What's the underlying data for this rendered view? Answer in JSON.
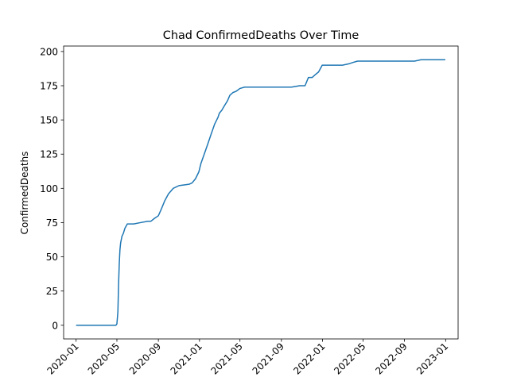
{
  "chart_data": {
    "type": "line",
    "title": "Chad  ConfirmedDeaths Over Time",
    "xlabel": "",
    "ylabel": "ConfirmedDeaths",
    "xlim": [
      "2019-11-25",
      "2023-02-07"
    ],
    "ylim": [
      -10,
      204
    ],
    "grid": false,
    "line_color": "#1f77b4",
    "x_ticks": [
      "2020-01",
      "2020-05",
      "2020-09",
      "2021-01",
      "2021-05",
      "2021-09",
      "2022-01",
      "2022-05",
      "2022-09",
      "2023-01"
    ],
    "y_ticks": [
      0,
      25,
      50,
      75,
      100,
      125,
      150,
      175,
      200
    ],
    "series": [
      {
        "x": [
          "2020-01-01",
          "2020-04-28",
          "2020-05-01",
          "2020-05-04",
          "2020-05-06",
          "2020-05-08",
          "2020-05-10",
          "2020-05-12",
          "2020-05-16",
          "2020-05-20",
          "2020-05-25",
          "2020-06-01",
          "2020-06-10",
          "2020-06-20",
          "2020-07-10",
          "2020-08-01",
          "2020-08-10",
          "2020-08-20",
          "2020-09-01",
          "2020-09-10",
          "2020-09-20",
          "2020-10-01",
          "2020-10-15",
          "2020-11-01",
          "2020-12-01",
          "2020-12-10",
          "2020-12-20",
          "2020-12-30",
          "2021-01-05",
          "2021-01-15",
          "2021-01-25",
          "2021-02-05",
          "2021-02-15",
          "2021-02-25",
          "2021-03-01",
          "2021-03-08",
          "2021-03-15",
          "2021-03-25",
          "2021-04-01",
          "2021-04-10",
          "2021-04-20",
          "2021-05-01",
          "2021-05-15",
          "2021-06-01",
          "2021-07-01",
          "2021-08-01",
          "2021-09-01",
          "2021-10-01",
          "2021-10-25",
          "2021-11-10",
          "2021-11-20",
          "2021-12-01",
          "2021-12-10",
          "2021-12-20",
          "2021-12-31",
          "2022-01-15",
          "2022-02-01",
          "2022-03-01",
          "2022-03-20",
          "2022-04-01",
          "2022-04-15",
          "2022-06-01",
          "2022-08-01",
          "2022-10-01",
          "2022-10-20",
          "2022-12-01",
          "2022-12-31"
        ],
        "y": [
          0,
          0,
          1,
          10,
          30,
          45,
          55,
          60,
          65,
          67,
          71,
          74,
          74,
          74,
          75,
          76,
          76,
          78,
          80,
          85,
          91,
          96,
          100,
          102,
          103,
          104,
          107,
          112,
          118,
          125,
          132,
          140,
          147,
          152,
          155,
          157,
          160,
          164,
          168,
          170,
          171,
          173,
          174,
          174,
          174,
          174,
          174,
          174,
          175,
          175,
          181,
          181,
          183,
          185,
          190,
          190,
          190,
          190,
          191,
          192,
          193,
          193,
          193,
          193,
          194,
          194,
          194
        ]
      }
    ]
  }
}
